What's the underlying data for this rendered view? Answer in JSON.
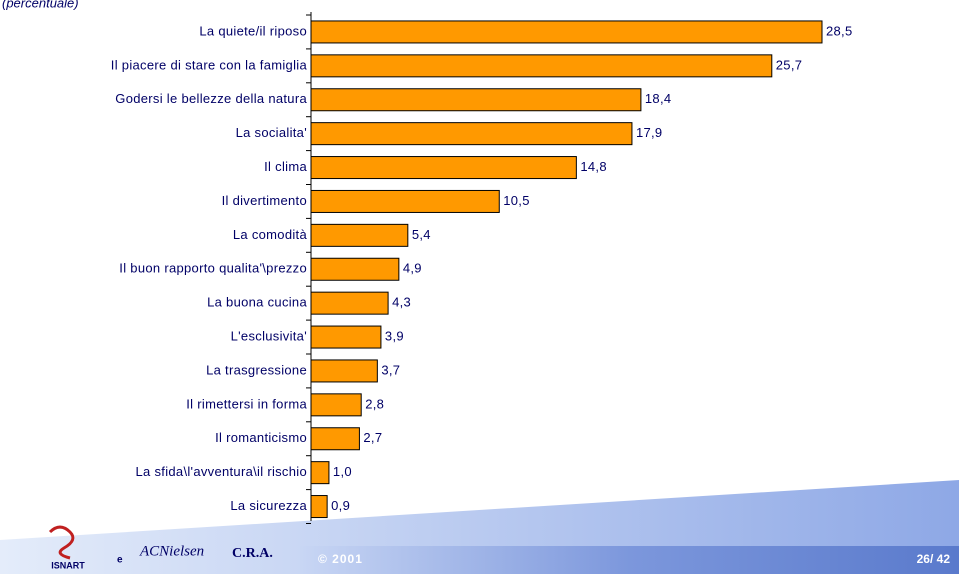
{
  "chart_data": {
    "type": "bar",
    "orientation": "horizontal",
    "subtitle": "(percentuale)",
    "categories": [
      "La quiete/il riposo",
      "Il piacere di stare con la famiglia",
      "Godersi le bellezze della natura",
      "La socialita'",
      "Il clima",
      "Il divertimento",
      "La comodità",
      "Il buon rapporto qualita'\\prezzo",
      "La buona cucina",
      "L'esclusivita'",
      "La trasgressione",
      "Il rimettersi in forma",
      "Il romanticismo",
      "La sfida\\l'avventura\\il rischio",
      "La sicurezza"
    ],
    "values": [
      28.5,
      25.7,
      18.4,
      17.9,
      14.8,
      10.5,
      5.4,
      4.9,
      4.3,
      3.9,
      3.7,
      2.8,
      2.7,
      1.0,
      0.9
    ],
    "value_labels": [
      "28,5",
      "25,7",
      "18,4",
      "17,9",
      "14,8",
      "10,5",
      "5,4",
      "4,9",
      "4,3",
      "3,9",
      "3,7",
      "2,8",
      "2,7",
      "1,0",
      "0,9"
    ],
    "color": "#ff9900"
  },
  "footer": {
    "logo1": "ISNART",
    "conj": "e",
    "logo2": "ACNielsen",
    "logo3": "C.R.A.",
    "copyright": "© 2001",
    "page": "26/ 42"
  }
}
